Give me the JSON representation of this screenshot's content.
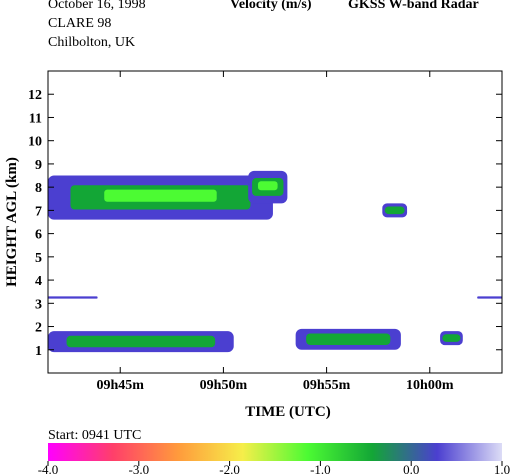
{
  "header": {
    "date": "October  16, 1998",
    "campaign": "CLARE 98",
    "site": "Chilbolton, UK",
    "quantity": "Velocity (m/s)",
    "instrument": "GKSS  W-band Radar"
  },
  "footer": {
    "start": "Start: 0941 UTC"
  },
  "chart_data": {
    "type": "heatmap",
    "title": "Velocity (m/s)",
    "xlabel": "TIME (UTC)",
    "ylabel": "HEIGHT AGL (km)",
    "x_range_min": [
      41.5,
      63.5
    ],
    "x_ticks": [
      {
        "min": 45,
        "label": "09h45m"
      },
      {
        "min": 50,
        "label": "09h50m"
      },
      {
        "min": 55,
        "label": "09h55m"
      },
      {
        "min": 60,
        "label": "10h00m"
      }
    ],
    "ylim": [
      0,
      13
    ],
    "y_ticks": [
      1,
      2,
      3,
      4,
      5,
      6,
      7,
      8,
      9,
      10,
      11,
      12
    ],
    "colorbar": {
      "vmin": -4.0,
      "vmax": 1.0,
      "ticks": [
        -4.0,
        -3.0,
        -2.0,
        -1.0,
        0.0,
        1.0
      ],
      "tick_labels": [
        "-4.0",
        "-3.0",
        "-2.0",
        "-1.0",
        "0.0",
        "1.0"
      ],
      "colors": [
        "#ff00ff",
        "#ff3f6a",
        "#ff9a3c",
        "#f6ee4a",
        "#4cfb33",
        "#13a636",
        "#4b3fd0",
        "#dcdcf6"
      ]
    },
    "echoes": [
      {
        "name": "upper cloud layer",
        "t_start": 41.5,
        "t_end": 52.4,
        "h_bottom": 6.6,
        "h_top": 8.5,
        "mean_velocity": -0.5
      },
      {
        "name": "cloud head",
        "t_start": 51.2,
        "t_end": 53.1,
        "h_bottom": 7.3,
        "h_top": 8.7,
        "mean_velocity": -0.8
      },
      {
        "name": "isolated cell",
        "t_start": 57.7,
        "t_end": 58.9,
        "h_bottom": 6.7,
        "h_top": 7.3,
        "mean_velocity": 0.0
      },
      {
        "name": "thin line",
        "t_start": 41.5,
        "t_end": 43.9,
        "h_bottom": 3.2,
        "h_top": 3.3,
        "mean_velocity": 0.2
      },
      {
        "name": "thin line",
        "t_start": 62.3,
        "t_end": 63.5,
        "h_bottom": 3.2,
        "h_top": 3.3,
        "mean_velocity": 0.2
      },
      {
        "name": "low cloud",
        "t_start": 41.5,
        "t_end": 50.5,
        "h_bottom": 0.9,
        "h_top": 1.8,
        "mean_velocity": -0.4
      },
      {
        "name": "low cloud",
        "t_start": 53.5,
        "t_end": 58.6,
        "h_bottom": 1.0,
        "h_top": 1.9,
        "mean_velocity": -0.1
      },
      {
        "name": "low cloud",
        "t_start": 60.5,
        "t_end": 61.6,
        "h_bottom": 1.2,
        "h_top": 1.8,
        "mean_velocity": 0.0
      }
    ]
  }
}
